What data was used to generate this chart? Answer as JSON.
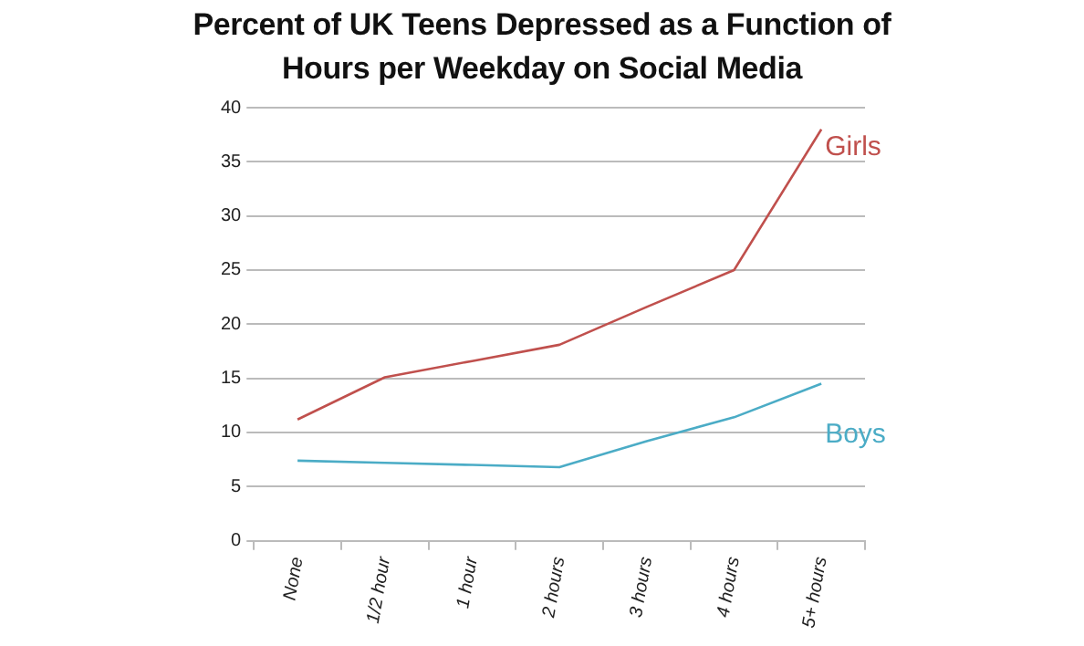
{
  "chart_data": {
    "type": "line",
    "title": "Percent of UK Teens Depressed as a Function of Hours per Weekday on Social Media",
    "categories": [
      "None",
      "1/2 hour",
      "1 hour",
      "2 hours",
      "3 hours",
      "4 hours",
      "5+ hours"
    ],
    "series": [
      {
        "name": "Girls",
        "color": "#c0504d",
        "values": [
          11.2,
          15.1,
          16.6,
          18.1,
          21.6,
          25,
          38
        ]
      },
      {
        "name": "Boys",
        "color": "#4bacc6",
        "values": [
          7.4,
          7.2,
          7.0,
          6.8,
          9.2,
          11.4,
          14.5
        ]
      }
    ],
    "ylim": [
      0,
      40
    ],
    "yticks": [
      0,
      5,
      10,
      15,
      20,
      25,
      30,
      35,
      40
    ],
    "grid": "y",
    "legend": false,
    "marker": "none",
    "line_style": "solid"
  }
}
